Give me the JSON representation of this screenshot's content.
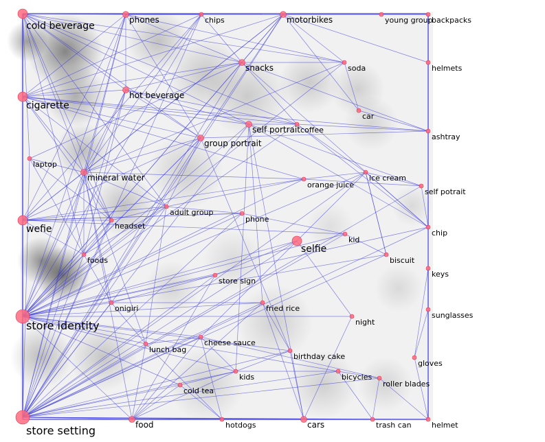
{
  "colors": {
    "edge": "#3333dd",
    "node": "#ff6b7f",
    "node_stroke": "#dd3355",
    "label": "#000000",
    "background": "#ffffff"
  },
  "nodes": [
    {
      "id": "cold-beverage",
      "label": "cold beverage",
      "weight": 3
    },
    {
      "id": "phones",
      "label": "phones",
      "weight": 2
    },
    {
      "id": "chips",
      "label": "chips",
      "weight": 1
    },
    {
      "id": "motorbikes",
      "label": "motorbikes",
      "weight": 2
    },
    {
      "id": "young-group",
      "label": "young group",
      "weight": 1
    },
    {
      "id": "backpacks",
      "label": "backpacks",
      "weight": 1
    },
    {
      "id": "snacks",
      "label": "snacks",
      "weight": 2
    },
    {
      "id": "soda",
      "label": "soda",
      "weight": 1
    },
    {
      "id": "helmets",
      "label": "helmets",
      "weight": 1
    },
    {
      "id": "cigarette",
      "label": "cigarette",
      "weight": 3
    },
    {
      "id": "hot-beverage",
      "label": "hot beverage",
      "weight": 2
    },
    {
      "id": "car",
      "label": "car",
      "weight": 1
    },
    {
      "id": "self-portrait",
      "label": "self portrait",
      "weight": 2
    },
    {
      "id": "coffee",
      "label": "coffee",
      "weight": 1
    },
    {
      "id": "group-portrait",
      "label": "group portrait",
      "weight": 2
    },
    {
      "id": "ashtray",
      "label": "ashtray",
      "weight": 1
    },
    {
      "id": "laptop",
      "label": "laptop",
      "weight": 1
    },
    {
      "id": "mineral-water",
      "label": "mineral water",
      "weight": 2
    },
    {
      "id": "orange-juice",
      "label": "orange juice",
      "weight": 1
    },
    {
      "id": "ice-cream",
      "label": "ice cream",
      "weight": 1
    },
    {
      "id": "self-potrait",
      "label": "self potrait",
      "weight": 1
    },
    {
      "id": "adult-group",
      "label": "adult group",
      "weight": 1
    },
    {
      "id": "phone",
      "label": "phone",
      "weight": 1
    },
    {
      "id": "wefie",
      "label": "wefie",
      "weight": 3
    },
    {
      "id": "headset",
      "label": "headset",
      "weight": 1
    },
    {
      "id": "chip",
      "label": "chip",
      "weight": 1
    },
    {
      "id": "kid",
      "label": "kid",
      "weight": 1
    },
    {
      "id": "selfie",
      "label": "selfie",
      "weight": 3
    },
    {
      "id": "foods",
      "label": "foods",
      "weight": 1
    },
    {
      "id": "biscuit",
      "label": "biscuit",
      "weight": 1
    },
    {
      "id": "keys",
      "label": "keys",
      "weight": 1
    },
    {
      "id": "store-sign",
      "label": "store sign",
      "weight": 1
    },
    {
      "id": "onigiri",
      "label": "onigiri",
      "weight": 1
    },
    {
      "id": "fried-rice",
      "label": "fried rice",
      "weight": 1
    },
    {
      "id": "sunglasses",
      "label": "sunglasses",
      "weight": 1
    },
    {
      "id": "store-identity",
      "label": "store identity",
      "weight": 4
    },
    {
      "id": "night",
      "label": "night",
      "weight": 1
    },
    {
      "id": "cheese-sauce",
      "label": "cheese sauce",
      "weight": 1
    },
    {
      "id": "lunch-bag",
      "label": "lunch bag",
      "weight": 1
    },
    {
      "id": "birthday-cake",
      "label": "birthday cake",
      "weight": 1
    },
    {
      "id": "gloves",
      "label": "gloves",
      "weight": 1
    },
    {
      "id": "kids",
      "label": "kids",
      "weight": 1
    },
    {
      "id": "bicycles",
      "label": "bicycles",
      "weight": 1
    },
    {
      "id": "roller-blades",
      "label": "roller blades",
      "weight": 1
    },
    {
      "id": "cold-tea",
      "label": "cold tea",
      "weight": 1
    },
    {
      "id": "store-setting",
      "label": "store setting",
      "weight": 4
    },
    {
      "id": "food",
      "label": "food",
      "weight": 2
    },
    {
      "id": "hotdogs",
      "label": "hotdogs",
      "weight": 1
    },
    {
      "id": "cars",
      "label": "cars",
      "weight": 2
    },
    {
      "id": "trash-can",
      "label": "trash can",
      "weight": 1
    },
    {
      "id": "helmet",
      "label": "helmet",
      "weight": 1
    }
  ],
  "edges": [
    [
      "cold-beverage",
      "phones"
    ],
    [
      "cold-beverage",
      "chips"
    ],
    [
      "cold-beverage",
      "motorbikes"
    ],
    [
      "cold-beverage",
      "snacks"
    ],
    [
      "cold-beverage",
      "hot-beverage"
    ],
    [
      "cold-beverage",
      "group-portrait"
    ],
    [
      "cold-beverage",
      "mineral-water"
    ],
    [
      "cold-beverage",
      "adult-group"
    ],
    [
      "cold-beverage",
      "headset"
    ],
    [
      "cold-beverage",
      "foods"
    ],
    [
      "cold-beverage",
      "self-portrait"
    ],
    [
      "cold-beverage",
      "coffee"
    ],
    [
      "cold-beverage",
      "cigarette"
    ],
    [
      "cold-beverage",
      "store-identity"
    ],
    [
      "cold-beverage",
      "store-setting"
    ],
    [
      "cold-beverage",
      "wefie"
    ],
    [
      "cold-beverage",
      "laptop"
    ],
    [
      "cold-beverage",
      "soda"
    ],
    [
      "phones",
      "chips"
    ],
    [
      "phones",
      "motorbikes"
    ],
    [
      "phones",
      "snacks"
    ],
    [
      "phones",
      "group-portrait"
    ],
    [
      "phones",
      "cigarette"
    ],
    [
      "phones",
      "wefie"
    ],
    [
      "phones",
      "store-identity"
    ],
    [
      "phones",
      "store-setting"
    ],
    [
      "phones",
      "mineral-water"
    ],
    [
      "phones",
      "soda"
    ],
    [
      "phones",
      "hot-beverage"
    ],
    [
      "chips",
      "snacks"
    ],
    [
      "chips",
      "cigarette"
    ],
    [
      "chips",
      "store-identity"
    ],
    [
      "chips",
      "store-setting"
    ],
    [
      "chips",
      "wefie"
    ],
    [
      "chips",
      "mineral-water"
    ],
    [
      "motorbikes",
      "young-group"
    ],
    [
      "motorbikes",
      "backpacks"
    ],
    [
      "motorbikes",
      "helmets"
    ],
    [
      "motorbikes",
      "group-portrait"
    ],
    [
      "motorbikes",
      "cigarette"
    ],
    [
      "motorbikes",
      "store-identity"
    ],
    [
      "motorbikes",
      "store-setting"
    ],
    [
      "motorbikes",
      "car"
    ],
    [
      "motorbikes",
      "wefie"
    ],
    [
      "motorbikes",
      "snacks"
    ],
    [
      "motorbikes",
      "soda"
    ],
    [
      "motorbikes",
      "mineral-water"
    ],
    [
      "backpacks",
      "helmets"
    ],
    [
      "backpacks",
      "young-group"
    ],
    [
      "snacks",
      "soda"
    ],
    [
      "snacks",
      "cigarette"
    ],
    [
      "snacks",
      "store-identity"
    ],
    [
      "snacks",
      "store-setting"
    ],
    [
      "snacks",
      "hot-beverage"
    ],
    [
      "snacks",
      "ashtray"
    ],
    [
      "snacks",
      "coffee"
    ],
    [
      "snacks",
      "chip"
    ],
    [
      "snacks",
      "laptop"
    ],
    [
      "soda",
      "store-identity"
    ],
    [
      "soda",
      "car"
    ],
    [
      "soda",
      "mineral-water"
    ],
    [
      "cigarette",
      "hot-beverage"
    ],
    [
      "cigarette",
      "group-portrait"
    ],
    [
      "cigarette",
      "self-portrait"
    ],
    [
      "cigarette",
      "coffee"
    ],
    [
      "cigarette",
      "ashtray"
    ],
    [
      "cigarette",
      "store-identity"
    ],
    [
      "cigarette",
      "store-setting"
    ],
    [
      "cigarette",
      "mineral-water"
    ],
    [
      "cigarette",
      "adult-group"
    ],
    [
      "cigarette",
      "orange-juice"
    ],
    [
      "cigarette",
      "wefie"
    ],
    [
      "cigarette",
      "headset"
    ],
    [
      "hot-beverage",
      "group-portrait"
    ],
    [
      "hot-beverage",
      "self-portrait"
    ],
    [
      "hot-beverage",
      "store-identity"
    ],
    [
      "hot-beverage",
      "store-setting"
    ],
    [
      "hot-beverage",
      "foods"
    ],
    [
      "hot-beverage",
      "mineral-water"
    ],
    [
      "hot-beverage",
      "coffee"
    ],
    [
      "self-portrait",
      "coffee"
    ],
    [
      "self-portrait",
      "store-setting"
    ],
    [
      "self-portrait",
      "store-identity"
    ],
    [
      "self-portrait",
      "chip"
    ],
    [
      "self-portrait",
      "fried-rice"
    ],
    [
      "self-portrait",
      "self-potrait"
    ],
    [
      "self-portrait",
      "cars"
    ],
    [
      "self-portrait",
      "kids"
    ],
    [
      "coffee",
      "ashtray"
    ],
    [
      "coffee",
      "store-identity"
    ],
    [
      "coffee",
      "ice-cream"
    ],
    [
      "coffee",
      "chip"
    ],
    [
      "group-portrait",
      "store-identity"
    ],
    [
      "group-portrait",
      "store-setting"
    ],
    [
      "group-portrait",
      "mineral-water"
    ],
    [
      "group-portrait",
      "adult-group"
    ],
    [
      "group-portrait",
      "birthday-cake"
    ],
    [
      "group-portrait",
      "wefie"
    ],
    [
      "group-portrait",
      "foods"
    ],
    [
      "group-portrait",
      "ashtray"
    ],
    [
      "laptop",
      "store-setting"
    ],
    [
      "laptop",
      "mineral-water"
    ],
    [
      "laptop",
      "foods"
    ],
    [
      "laptop",
      "headset"
    ],
    [
      "mineral-water",
      "store-identity"
    ],
    [
      "mineral-water",
      "store-setting"
    ],
    [
      "mineral-water",
      "wefie"
    ],
    [
      "mineral-water",
      "adult-group"
    ],
    [
      "mineral-water",
      "headset"
    ],
    [
      "mineral-water",
      "foods"
    ],
    [
      "mineral-water",
      "orange-juice"
    ],
    [
      "mineral-water",
      "onigiri"
    ],
    [
      "mineral-water",
      "food"
    ],
    [
      "mineral-water",
      "lunch-bag"
    ],
    [
      "orange-juice",
      "ice-cream"
    ],
    [
      "orange-juice",
      "store-identity"
    ],
    [
      "orange-juice",
      "adult-group"
    ],
    [
      "orange-juice",
      "self-potrait"
    ],
    [
      "ice-cream",
      "self-potrait"
    ],
    [
      "ice-cream",
      "chip"
    ],
    [
      "ice-cream",
      "biscuit"
    ],
    [
      "ice-cream",
      "store-setting"
    ],
    [
      "ice-cream",
      "store-identity"
    ],
    [
      "ice-cream",
      "cheese-sauce"
    ],
    [
      "self-potrait",
      "chip"
    ],
    [
      "self-potrait",
      "store-setting"
    ],
    [
      "adult-group",
      "store-identity"
    ],
    [
      "adult-group",
      "store-setting"
    ],
    [
      "adult-group",
      "wefie"
    ],
    [
      "adult-group",
      "headset"
    ],
    [
      "adult-group",
      "lunch-bag"
    ],
    [
      "adult-group",
      "phone"
    ],
    [
      "adult-group",
      "foods"
    ],
    [
      "phone",
      "store-setting"
    ],
    [
      "phone",
      "store-identity"
    ],
    [
      "phone",
      "wefie"
    ],
    [
      "phone",
      "kid"
    ],
    [
      "wefie",
      "headset"
    ],
    [
      "wefie",
      "store-identity"
    ],
    [
      "wefie",
      "store-setting"
    ],
    [
      "wefie",
      "foods"
    ],
    [
      "wefie",
      "orange-juice"
    ],
    [
      "wefie",
      "kid"
    ],
    [
      "wefie",
      "phone"
    ],
    [
      "headset",
      "store-identity"
    ],
    [
      "headset",
      "store-setting"
    ],
    [
      "headset",
      "foods"
    ],
    [
      "chip",
      "store-setting"
    ],
    [
      "chip",
      "store-identity"
    ],
    [
      "kid",
      "store-setting"
    ],
    [
      "kid",
      "store-identity"
    ],
    [
      "kid",
      "biscuit"
    ],
    [
      "selfie",
      "store-identity"
    ],
    [
      "selfie",
      "store-setting"
    ],
    [
      "selfie",
      "night"
    ],
    [
      "selfie",
      "store-sign"
    ],
    [
      "foods",
      "store-identity"
    ],
    [
      "foods",
      "store-setting"
    ],
    [
      "foods",
      "onigiri"
    ],
    [
      "biscuit",
      "store-setting"
    ],
    [
      "biscuit",
      "store-identity"
    ],
    [
      "biscuit",
      "ice-cream"
    ],
    [
      "keys",
      "sunglasses"
    ],
    [
      "keys",
      "gloves"
    ],
    [
      "store-sign",
      "store-setting"
    ],
    [
      "store-sign",
      "store-identity"
    ],
    [
      "store-sign",
      "onigiri"
    ],
    [
      "store-sign",
      "food"
    ],
    [
      "onigiri",
      "store-setting"
    ],
    [
      "onigiri",
      "store-identity"
    ],
    [
      "onigiri",
      "fried-rice"
    ],
    [
      "onigiri",
      "lunch-bag"
    ],
    [
      "fried-rice",
      "store-setting"
    ],
    [
      "fried-rice",
      "food"
    ],
    [
      "fried-rice",
      "birthday-cake"
    ],
    [
      "fried-rice",
      "store-identity"
    ],
    [
      "fried-rice",
      "cars"
    ],
    [
      "sunglasses",
      "gloves"
    ],
    [
      "sunglasses",
      "helmet"
    ],
    [
      "store-identity",
      "store-setting"
    ],
    [
      "store-identity",
      "lunch-bag"
    ],
    [
      "store-identity",
      "cheese-sauce"
    ],
    [
      "store-identity",
      "kids"
    ],
    [
      "store-identity",
      "cold-tea"
    ],
    [
      "store-identity",
      "food"
    ],
    [
      "store-identity",
      "birthday-cake"
    ],
    [
      "store-identity",
      "night"
    ],
    [
      "store-identity",
      "bicycles"
    ],
    [
      "night",
      "cars"
    ],
    [
      "cheese-sauce",
      "store-setting"
    ],
    [
      "cheese-sauce",
      "kids"
    ],
    [
      "cheese-sauce",
      "hotdogs"
    ],
    [
      "cheese-sauce",
      "lunch-bag"
    ],
    [
      "cheese-sauce",
      "food"
    ],
    [
      "cheese-sauce",
      "roller-blades"
    ],
    [
      "lunch-bag",
      "store-setting"
    ],
    [
      "lunch-bag",
      "food"
    ],
    [
      "lunch-bag",
      "hotdogs"
    ],
    [
      "birthday-cake",
      "kids"
    ],
    [
      "birthday-cake",
      "store-setting"
    ],
    [
      "birthday-cake",
      "cars"
    ],
    [
      "gloves",
      "helmet"
    ],
    [
      "kids",
      "store-setting"
    ],
    [
      "kids",
      "cold-tea"
    ],
    [
      "kids",
      "food"
    ],
    [
      "kids",
      "bicycles"
    ],
    [
      "bicycles",
      "roller-blades"
    ],
    [
      "bicycles",
      "trash-can"
    ],
    [
      "bicycles",
      "store-setting"
    ],
    [
      "roller-blades",
      "helmet"
    ],
    [
      "roller-blades",
      "trash-can"
    ],
    [
      "roller-blades",
      "store-setting"
    ],
    [
      "cold-tea",
      "store-setting"
    ],
    [
      "cold-tea",
      "food"
    ],
    [
      "cold-tea",
      "hotdogs"
    ],
    [
      "store-setting",
      "food"
    ],
    [
      "store-setting",
      "hotdogs"
    ],
    [
      "store-setting",
      "cars"
    ],
    [
      "store-setting",
      "trash-can"
    ],
    [
      "store-setting",
      "helmet"
    ],
    [
      "store-setting",
      "cold-beverage"
    ],
    [
      "food",
      "hotdogs"
    ],
    [
      "food",
      "cars"
    ],
    [
      "food",
      "helmet"
    ],
    [
      "hotdogs",
      "cars"
    ],
    [
      "cars",
      "trash-can"
    ],
    [
      "trash-can",
      "helmet"
    ],
    [
      "cars",
      "helmet"
    ],
    [
      "helmets",
      "backpacks"
    ],
    [
      "car",
      "ashtray"
    ],
    [
      "helmets",
      "ashtray"
    ]
  ]
}
